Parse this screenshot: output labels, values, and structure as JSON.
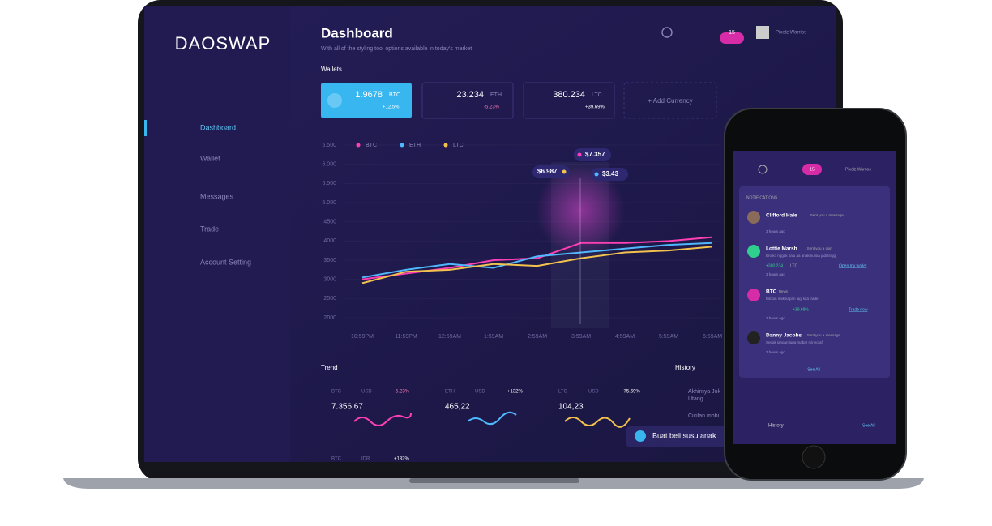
{
  "laptop": {
    "logo": "DAOSWAP",
    "nav": [
      "Dashboard",
      "Wallet",
      "Messages",
      "Trade",
      "Account Setting"
    ],
    "header": {
      "title": "Dashboard",
      "subtitle": "With all of the styling tool options available in today's market",
      "notifications": "15",
      "user": "Pixelz Warrios"
    },
    "wallets": {
      "title": "Wallets",
      "cards": [
        {
          "amount": "1.9678",
          "currency": "BTC",
          "change": "+12,5%"
        },
        {
          "amount": "23.234",
          "currency": "ETH",
          "change": "-5.23%"
        },
        {
          "amount": "380.234",
          "currency": "LTC",
          "change": "+39.69%"
        }
      ],
      "add": "+ Add Currency"
    },
    "chart": {
      "type": "line",
      "categories": [
        "10:59PM",
        "11:59PM",
        "12:59AM",
        "1:59AM",
        "2:59AM",
        "3:59AM",
        "4:59AM",
        "5:59AM",
        "6:59AM"
      ],
      "series": [
        {
          "name": "BTC",
          "color": "#ff3fb4",
          "values": [
            3000,
            3150,
            3300,
            3500,
            3550,
            3950,
            3950,
            4000,
            4100
          ]
        },
        {
          "name": "ETH",
          "color": "#4fb8ff",
          "values": [
            3050,
            3250,
            3400,
            3300,
            3600,
            3700,
            3800,
            3900,
            3950
          ]
        },
        {
          "name": "LTC",
          "color": "#f2c14e",
          "values": [
            2900,
            3200,
            3250,
            3400,
            3350,
            3550,
            3700,
            3750,
            3850
          ]
        }
      ],
      "ylim": [
        2000,
        6500
      ],
      "yticks": [
        {
          "value": 6500,
          "label": "6.500"
        },
        {
          "value": 6000,
          "label": "6.000"
        },
        {
          "value": 5500,
          "label": "5.500"
        },
        {
          "value": 5000,
          "label": "5.000"
        },
        4500,
        4000,
        3500,
        3000,
        2500,
        2000
      ],
      "tooltips": [
        "$6.987",
        "$7.357",
        "$3.43"
      ]
    },
    "trend": {
      "title": "Trend",
      "cards": [
        {
          "base": "BTC",
          "quote": "USD",
          "change": "-5.23%",
          "price": "7.356,67"
        },
        {
          "base": "ETH",
          "quote": "USD",
          "change": "+132%",
          "price": "465,22"
        },
        {
          "base": "LTC",
          "quote": "USD",
          "change": "+75.69%",
          "price": "104,23"
        },
        {
          "base": "BTC",
          "quote": "IDR",
          "change": "+132%"
        }
      ]
    },
    "history": {
      "title": "History",
      "items": [
        "Akhirnya Jok",
        "Utang",
        "Cicilan mobi",
        "Buat beli susu anak"
      ]
    }
  },
  "phone": {
    "notifications": "15",
    "user": "Pixelz Warrios",
    "panel_title": "NOTIFICATIONS",
    "items": [
      {
        "name": "Clifford Hale",
        "action": "Sent you a message",
        "time": "3 hours ago"
      },
      {
        "name": "Lottie Marsh",
        "action": "Sent you a coin",
        "message": "Bro ko nggak balu aa anakmu sia jadi tinggi",
        "amount": "+380.234",
        "currency": "LTC",
        "link": "Open my wallet",
        "time": "3 hours ago"
      },
      {
        "name": "BTC",
        "action": "News",
        "message": "Bitcoin naik kapan lagi kita trade",
        "change": "+39.69%",
        "link": "Trade now",
        "time": "3 hours ago"
      },
      {
        "name": "Danny Jacobs",
        "action": "Sent you a message",
        "message": "Sepak jangan lupa mabar minecraft",
        "time": "3 hours ago"
      }
    ],
    "see_all": "See All",
    "history": "History",
    "history_see_all": "See All"
  }
}
